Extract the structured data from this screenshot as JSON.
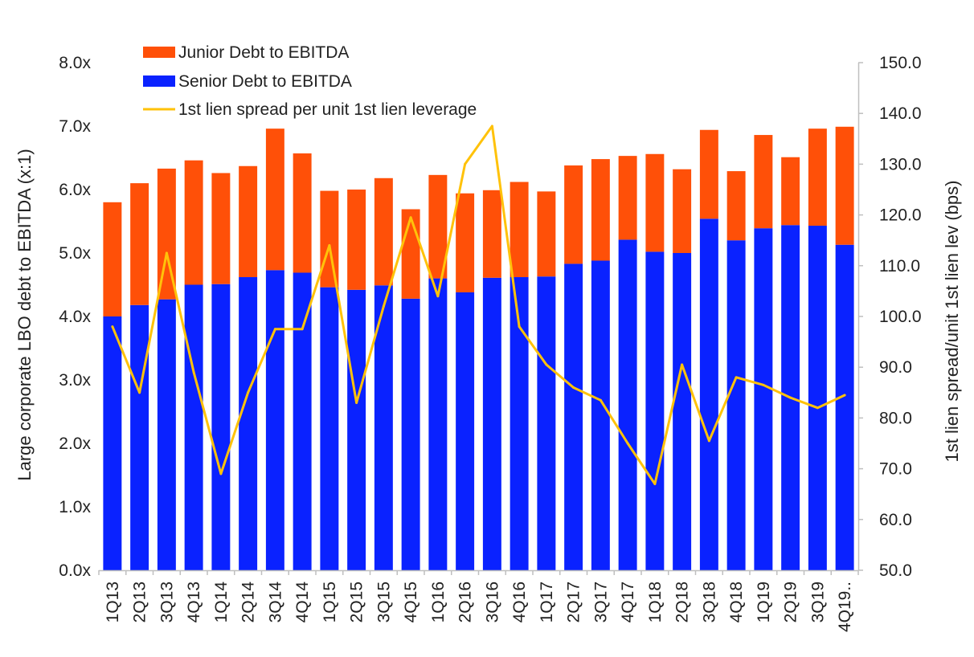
{
  "chart_data": {
    "type": "bar",
    "stacked": true,
    "categories": [
      "1Q13",
      "2Q13",
      "3Q13",
      "4Q13",
      "1Q14",
      "2Q14",
      "3Q14",
      "4Q14",
      "1Q15",
      "2Q15",
      "3Q15",
      "4Q15",
      "1Q16",
      "2Q16",
      "3Q16",
      "4Q16",
      "1Q17",
      "2Q17",
      "3Q17",
      "4Q17",
      "1Q18",
      "2Q18",
      "3Q18",
      "4Q18",
      "1Q19",
      "2Q19",
      "3Q19",
      "4Q19.."
    ],
    "series": [
      {
        "name": "Senior Debt to EBITDA",
        "kind": "bar",
        "axis": "left",
        "color": "#0a22ff",
        "values": [
          4.0,
          4.18,
          4.27,
          4.5,
          4.51,
          4.62,
          4.73,
          4.69,
          4.46,
          4.42,
          4.49,
          4.28,
          4.6,
          4.38,
          4.61,
          4.62,
          4.63,
          4.83,
          4.88,
          5.21,
          5.02,
          5.0,
          5.54,
          5.2,
          5.39,
          5.44,
          5.43,
          5.13
        ]
      },
      {
        "name": "Junior Debt to EBITDA",
        "kind": "bar",
        "axis": "left",
        "color": "#ff5008",
        "values": [
          1.8,
          1.92,
          2.06,
          1.96,
          1.75,
          1.75,
          2.23,
          1.88,
          1.52,
          1.58,
          1.69,
          1.41,
          1.63,
          1.56,
          1.38,
          1.5,
          1.34,
          1.55,
          1.6,
          1.32,
          1.54,
          1.32,
          1.4,
          1.09,
          1.47,
          1.07,
          1.53,
          1.86
        ]
      },
      {
        "name": "1st lien spread per unit 1st lien leverage",
        "kind": "line",
        "axis": "right",
        "color": "#ffc20a",
        "values": [
          98.0,
          85.0,
          112.5,
          89.0,
          69.0,
          85.0,
          97.5,
          97.5,
          114.0,
          83.0,
          102.0,
          119.5,
          104.0,
          130.0,
          137.5,
          98.0,
          90.5,
          86.0,
          83.5,
          75.0,
          67.0,
          90.5,
          75.5,
          88.0,
          86.5,
          84.0,
          82.0,
          84.5
        ]
      }
    ],
    "ylabel": "Large corporate LBO debt to EBITDA (x:1)",
    "y2label": "1st lien spread/unit 1st lien lev (bps)",
    "xlabel": "",
    "ylim": [
      0,
      8
    ],
    "y2lim": [
      50,
      150
    ],
    "yticks": [
      "0.0x",
      "1.0x",
      "2.0x",
      "3.0x",
      "4.0x",
      "5.0x",
      "6.0x",
      "7.0x",
      "8.0x"
    ],
    "y2ticks": [
      "50.0",
      "60.0",
      "70.0",
      "80.0",
      "90.0",
      "100.0",
      "110.0",
      "120.0",
      "130.0",
      "140.0",
      "150.0"
    ],
    "grid": false,
    "legend_position": "top-left",
    "legend": [
      "Junior Debt to EBITDA",
      "Senior Debt to EBITDA",
      "1st lien spread per unit 1st lien leverage"
    ]
  }
}
